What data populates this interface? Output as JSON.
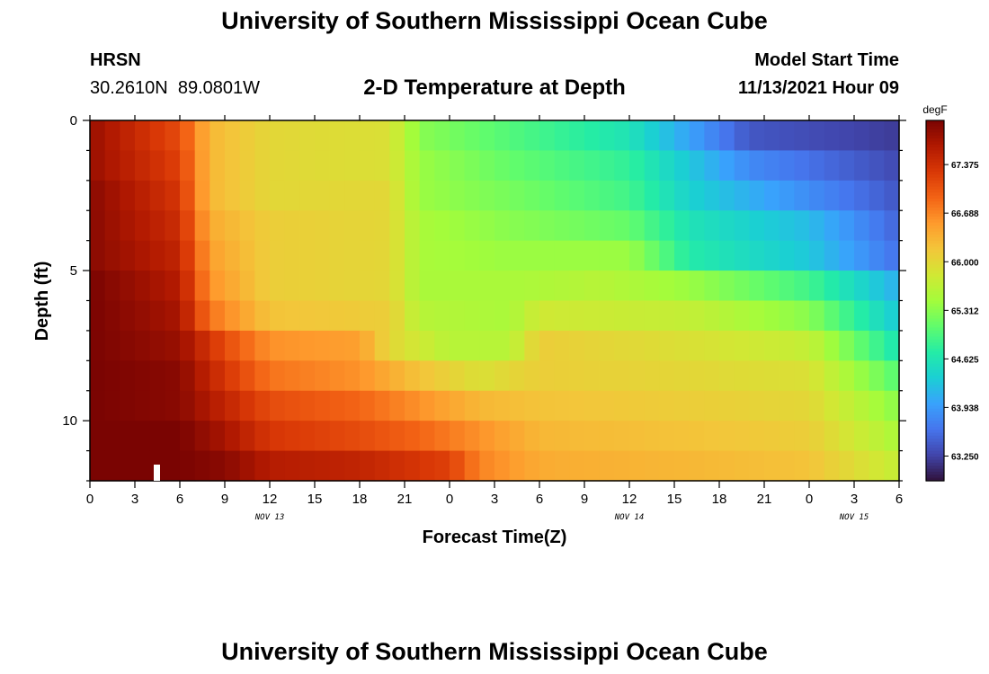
{
  "page": {
    "title_top": "University of Southern Mississippi Ocean Cube",
    "title_bottom": "University of Southern Mississippi Ocean Cube",
    "station": "HRSN",
    "coords": "30.2610N  89.0801W",
    "model_start_label": "Model Start Time",
    "model_start_value": "11/13/2021 Hour 09"
  },
  "chart_data": {
    "type": "heatmap",
    "title": "2-D Temperature at Depth",
    "xlabel": "Forecast Time(Z)",
    "ylabel": "Depth (ft)",
    "x_tick_labels": [
      "0",
      "3",
      "6",
      "9",
      "12",
      "15",
      "18",
      "21",
      "0",
      "3",
      "6",
      "9",
      "12",
      "15",
      "18",
      "21",
      "0",
      "3",
      "6"
    ],
    "date_labels": [
      {
        "label": "NOV 13",
        "hour_offset": 12
      },
      {
        "label": "NOV 14",
        "hour_offset": 36
      },
      {
        "label": "NOV 15",
        "hour_offset": 51
      }
    ],
    "x_range_hours": [
      0,
      54
    ],
    "y_ticks": [
      0,
      5,
      10
    ],
    "y_tick_labels": [
      "0",
      "5",
      "10"
    ],
    "y_range_ft": [
      0,
      12
    ],
    "colorbar": {
      "unit": "degF",
      "min": 62.9,
      "max": 68.0,
      "tick_values": [
        67.375,
        66.688,
        66.0,
        65.312,
        64.625,
        63.938,
        63.25
      ],
      "tick_labels": [
        "67.375",
        "66.688",
        "66.000",
        "65.312",
        "64.625",
        "63.938",
        "63.250"
      ],
      "colors": [
        "#30123b",
        "#4145ab",
        "#4675ed",
        "#39a2fc",
        "#1bcfd4",
        "#24eca6",
        "#61fc6c",
        "#a4fc3b",
        "#d1e834",
        "#f3c63a",
        "#fe9b2d",
        "#f36315",
        "#d93806",
        "#b11901",
        "#7a0402"
      ]
    },
    "depth_levels_ft": [
      0.5,
      1.5,
      2.5,
      3.5,
      4.5,
      5.5,
      6.5,
      7.5,
      8.5,
      9.5,
      10.5,
      11.5
    ],
    "profile_keypoints": [
      [
        [
          0,
          67.8
        ],
        [
          6,
          67.1
        ],
        [
          8,
          66.3
        ],
        [
          12,
          66.0
        ],
        [
          20,
          65.9
        ],
        [
          22,
          65.3
        ],
        [
          28,
          65.0
        ],
        [
          36,
          64.6
        ],
        [
          40,
          64.0
        ],
        [
          44,
          63.4
        ],
        [
          54,
          63.2
        ]
      ],
      [
        [
          0,
          67.8
        ],
        [
          6,
          67.2
        ],
        [
          8,
          66.3
        ],
        [
          12,
          66.0
        ],
        [
          20,
          65.9
        ],
        [
          22,
          65.4
        ],
        [
          28,
          65.1
        ],
        [
          36,
          64.8
        ],
        [
          40,
          64.3
        ],
        [
          44,
          63.8
        ],
        [
          54,
          63.3
        ]
      ],
      [
        [
          0,
          67.9
        ],
        [
          6,
          67.3
        ],
        [
          8,
          66.3
        ],
        [
          12,
          66.0
        ],
        [
          20,
          66.0
        ],
        [
          22,
          65.4
        ],
        [
          28,
          65.2
        ],
        [
          36,
          64.9
        ],
        [
          40,
          64.4
        ],
        [
          44,
          64.1
        ],
        [
          54,
          63.4
        ]
      ],
      [
        [
          0,
          67.9
        ],
        [
          6,
          67.4
        ],
        [
          8,
          66.4
        ],
        [
          12,
          66.1
        ],
        [
          20,
          66.0
        ],
        [
          22,
          65.5
        ],
        [
          28,
          65.3
        ],
        [
          36,
          65.1
        ],
        [
          40,
          64.6
        ],
        [
          48,
          64.2
        ],
        [
          54,
          63.5
        ]
      ],
      [
        [
          0,
          67.9
        ],
        [
          6,
          67.5
        ],
        [
          8,
          66.5
        ],
        [
          12,
          66.1
        ],
        [
          20,
          66.0
        ],
        [
          22,
          65.5
        ],
        [
          28,
          65.4
        ],
        [
          36,
          65.4
        ],
        [
          40,
          64.7
        ],
        [
          48,
          64.3
        ],
        [
          54,
          63.6
        ]
      ],
      [
        [
          0,
          68.0
        ],
        [
          6,
          67.6
        ],
        [
          8,
          66.6
        ],
        [
          12,
          66.1
        ],
        [
          20,
          66.0
        ],
        [
          22,
          65.5
        ],
        [
          28,
          65.5
        ],
        [
          34,
          65.6
        ],
        [
          40,
          65.4
        ],
        [
          48,
          64.9
        ],
        [
          54,
          64.1
        ]
      ],
      [
        [
          0,
          68.0
        ],
        [
          6,
          67.7
        ],
        [
          8,
          66.8
        ],
        [
          12,
          66.2
        ],
        [
          20,
          66.1
        ],
        [
          22,
          65.6
        ],
        [
          28,
          65.5
        ],
        [
          30,
          65.8
        ],
        [
          40,
          65.7
        ],
        [
          48,
          65.3
        ],
        [
          54,
          64.3
        ]
      ],
      [
        [
          0,
          68.0
        ],
        [
          6,
          67.8
        ],
        [
          9,
          67.1
        ],
        [
          12,
          66.6
        ],
        [
          18,
          66.5
        ],
        [
          20,
          66.0
        ],
        [
          24,
          65.6
        ],
        [
          28,
          65.6
        ],
        [
          30,
          66.1
        ],
        [
          40,
          65.9
        ],
        [
          48,
          65.7
        ],
        [
          54,
          64.6
        ]
      ],
      [
        [
          0,
          68.0
        ],
        [
          6,
          67.9
        ],
        [
          9,
          67.3
        ],
        [
          12,
          66.8
        ],
        [
          18,
          66.6
        ],
        [
          22,
          66.2
        ],
        [
          26,
          65.9
        ],
        [
          30,
          66.1
        ],
        [
          40,
          66.0
        ],
        [
          48,
          65.9
        ],
        [
          54,
          65.0
        ]
      ],
      [
        [
          0,
          68.0
        ],
        [
          6,
          67.9
        ],
        [
          9,
          67.5
        ],
        [
          12,
          67.1
        ],
        [
          18,
          66.9
        ],
        [
          22,
          66.6
        ],
        [
          26,
          66.3
        ],
        [
          30,
          66.2
        ],
        [
          40,
          66.1
        ],
        [
          48,
          66.0
        ],
        [
          54,
          65.3
        ]
      ],
      [
        [
          0,
          68.0
        ],
        [
          6,
          68.0
        ],
        [
          9,
          67.7
        ],
        [
          12,
          67.3
        ],
        [
          18,
          67.1
        ],
        [
          22,
          66.9
        ],
        [
          26,
          66.6
        ],
        [
          30,
          66.3
        ],
        [
          40,
          66.2
        ],
        [
          48,
          66.1
        ],
        [
          54,
          65.5
        ]
      ],
      [
        [
          0,
          68.0
        ],
        [
          6,
          68.0
        ],
        [
          9,
          67.9
        ],
        [
          12,
          67.6
        ],
        [
          18,
          67.5
        ],
        [
          24,
          67.2
        ],
        [
          26,
          66.7
        ],
        [
          30,
          66.4
        ],
        [
          40,
          66.3
        ],
        [
          48,
          66.2
        ],
        [
          54,
          65.7
        ]
      ]
    ]
  }
}
